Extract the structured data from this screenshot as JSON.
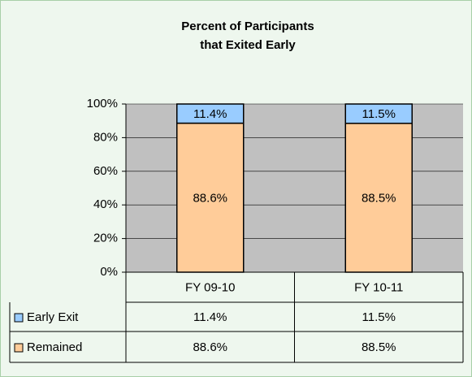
{
  "chart_data": {
    "type": "stacked_bar",
    "title": [
      "Percent of Participants",
      "that Exited Early"
    ],
    "categories": [
      "FY 09-10",
      "FY 10-11"
    ],
    "series": [
      {
        "name": "Early Exit",
        "color": "#99ccff",
        "values": [
          11.4,
          11.5
        ],
        "value_labels": [
          "11.4%",
          "11.5%"
        ]
      },
      {
        "name": "Remained",
        "color": "#ffcc99",
        "values": [
          88.6,
          88.5
        ],
        "value_labels": [
          "88.6%",
          "88.5%"
        ]
      }
    ],
    "ylim": [
      0,
      100
    ],
    "yticks": [
      {
        "value": 0,
        "label": "0%"
      },
      {
        "value": 20,
        "label": "20%"
      },
      {
        "value": 40,
        "label": "40%"
      },
      {
        "value": 60,
        "label": "60%"
      },
      {
        "value": 80,
        "label": "80%"
      },
      {
        "value": 100,
        "label": "100%"
      }
    ],
    "grid": true,
    "plot_color": "#c0c0c0"
  }
}
